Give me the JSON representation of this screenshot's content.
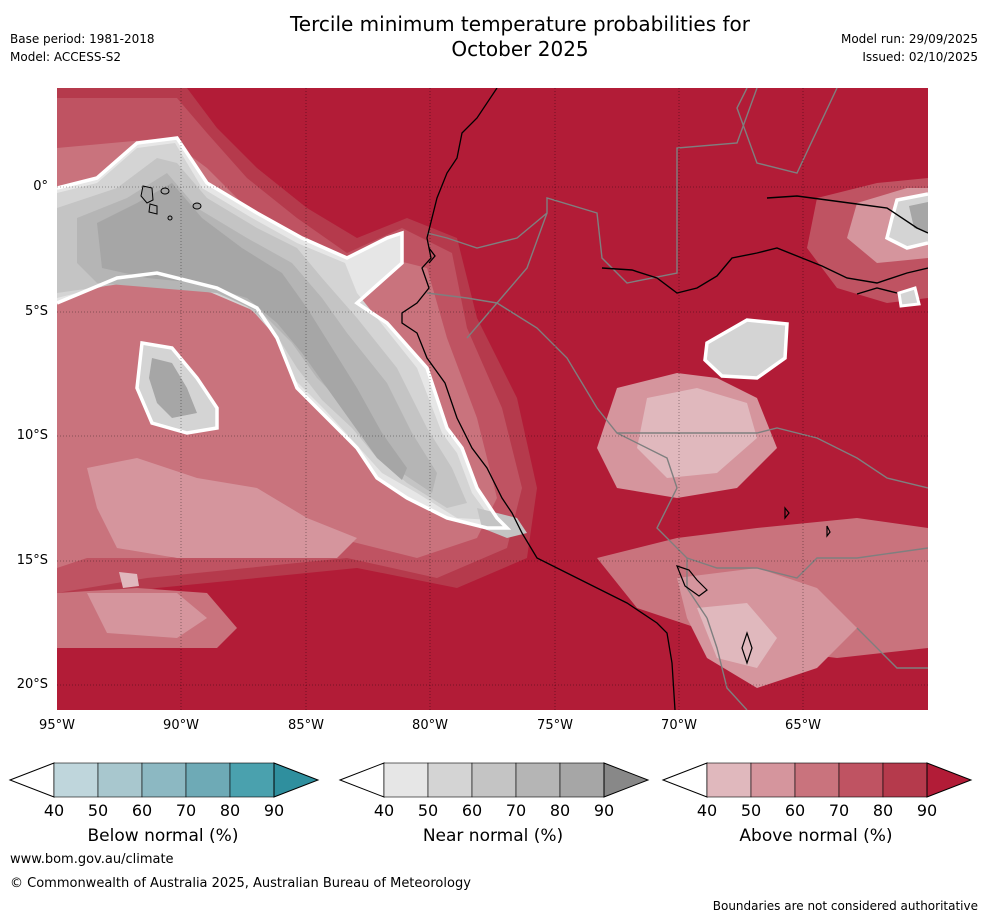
{
  "title": {
    "line1": "Tercile minimum temperature probabilities for",
    "line2": "October 2025"
  },
  "meta": {
    "base_period": "Base period: 1981-2018",
    "model": "Model: ACCESS-S2",
    "model_run": "Model run: 29/09/2025",
    "issued": "Issued: 02/10/2025"
  },
  "map": {
    "lat_labels": [
      "0°",
      "5°S",
      "10°S",
      "15°S",
      "20°S"
    ],
    "lon_labels": [
      "95°W",
      "90°W",
      "85°W",
      "80°W",
      "75°W",
      "70°W",
      "65°W"
    ],
    "colors": {
      "above": [
        "#e0b8bd",
        "#d5959d",
        "#c9737d",
        "#bf5362",
        "#b53a4c",
        "#b21c37"
      ],
      "near": [
        "#e6e6e6",
        "#d4d4d4",
        "#c4c4c4",
        "#b5b5b5",
        "#a6a6a6",
        "#888888"
      ],
      "below": [
        "#bfd6dc",
        "#a8c7ce",
        "#8cb8c2",
        "#6eaab6",
        "#4aa1ae",
        "#2f8f9e"
      ]
    }
  },
  "colorbars": {
    "below": {
      "title": "Below normal (%)",
      "ticks": [
        "40",
        "50",
        "60",
        "70",
        "80",
        "90"
      ]
    },
    "near": {
      "title": "Near normal (%)",
      "ticks": [
        "40",
        "50",
        "60",
        "70",
        "80",
        "90"
      ]
    },
    "above": {
      "title": "Above normal (%)",
      "ticks": [
        "40",
        "50",
        "60",
        "70",
        "80",
        "90"
      ]
    }
  },
  "footer": {
    "url": "www.bom.gov.au/climate",
    "copyright": "© Commonwealth of Australia 2025, Australian Bureau of Meteorology",
    "disclaimer": "Boundaries are not considered authoritative"
  }
}
